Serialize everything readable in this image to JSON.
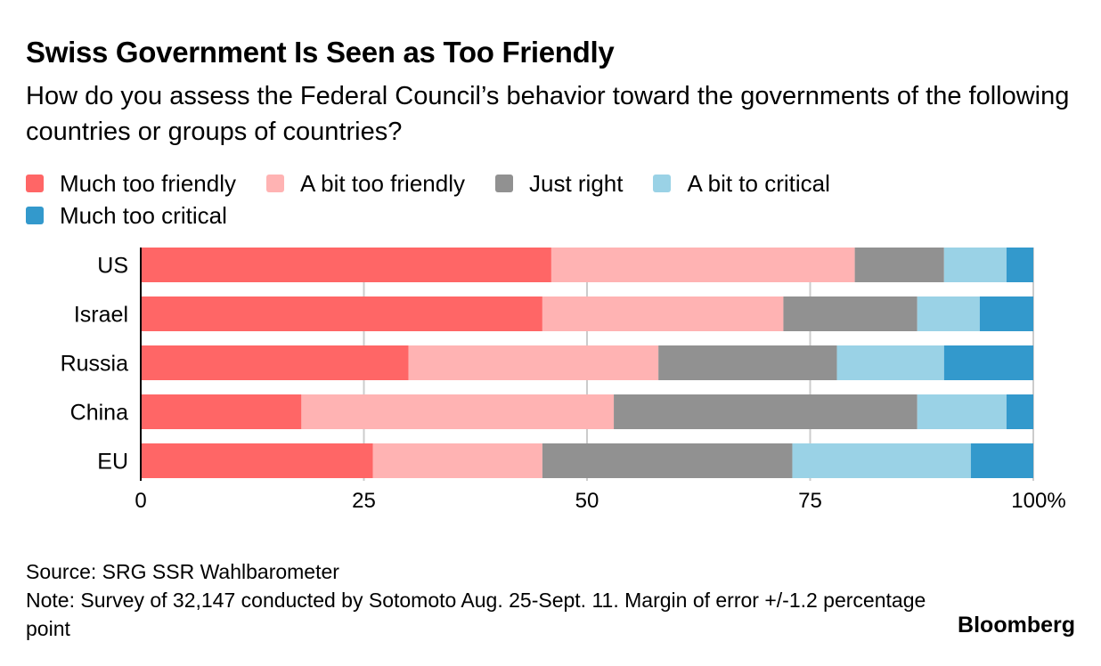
{
  "header": {
    "title": "Swiss Government Is Seen as Too Friendly",
    "subtitle": "How do you assess the Federal Council’s behavior toward the governments of the following countries or groups of countries?"
  },
  "legend": [
    {
      "label": "Much too friendly",
      "color": "#ff6666"
    },
    {
      "label": "A bit too friendly",
      "color": "#ffb3b3"
    },
    {
      "label": "Just right",
      "color": "#919191"
    },
    {
      "label": "A bit to critical",
      "color": "#9ad2e6"
    },
    {
      "label": "Much too critical",
      "color": "#3399cc"
    }
  ],
  "chart_data": {
    "type": "bar",
    "orientation": "horizontal",
    "stacked": true,
    "categories": [
      "US",
      "Israel",
      "Russia",
      "China",
      "EU"
    ],
    "series": [
      {
        "name": "Much too friendly",
        "values": [
          46,
          45,
          30,
          18,
          26
        ]
      },
      {
        "name": "A bit too friendly",
        "values": [
          34,
          27,
          28,
          35,
          19
        ]
      },
      {
        "name": "Just right",
        "values": [
          10,
          15,
          20,
          34,
          28
        ]
      },
      {
        "name": "A bit to critical",
        "values": [
          7,
          7,
          12,
          10,
          20
        ]
      },
      {
        "name": "Much too critical",
        "values": [
          3,
          6,
          10,
          3,
          7
        ]
      }
    ],
    "xlim": [
      0,
      100
    ],
    "xticks": [
      0,
      25,
      50,
      75,
      100
    ],
    "xtick_labels": [
      "0",
      "25",
      "50",
      "75",
      "100%"
    ],
    "grid": true
  },
  "footer": {
    "source": "Source: SRG SSR Wahlbarometer",
    "note": "Note: Survey of 32,147 conducted by Sotomoto Aug. 25-Sept. 11. Margin of error +/-1.2 percentage point",
    "brand": "Bloomberg"
  }
}
